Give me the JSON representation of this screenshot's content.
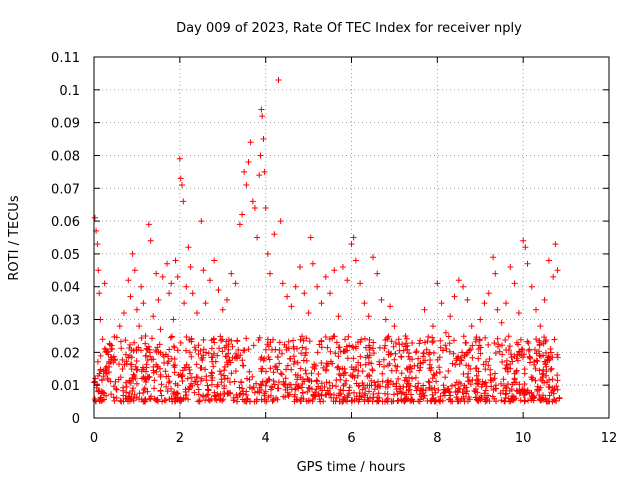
{
  "chart_data": {
    "type": "scatter",
    "title": "Day 009 of 2023, Rate Of TEC Index for receiver nply",
    "xlabel": "GPS time / hours",
    "ylabel": "ROTI / TECUs",
    "xlim": [
      0,
      12
    ],
    "ylim": [
      0,
      0.11
    ],
    "xticks": [
      "0",
      "2",
      "4",
      "6",
      "8",
      "10",
      "12"
    ],
    "yticks": [
      "0",
      "0.01",
      "0.02",
      "0.03",
      "0.04",
      "0.05",
      "0.06",
      "0.07",
      "0.08",
      "0.09",
      "0.1",
      "0.11"
    ],
    "grid": true,
    "marker": "+",
    "color": "#ff0000",
    "series": [
      {
        "name": "ROTI",
        "points": [
          [
            0.02,
            0.061
          ],
          [
            0.05,
            0.057
          ],
          [
            0.08,
            0.053
          ],
          [
            0.1,
            0.045
          ],
          [
            0.12,
            0.038
          ],
          [
            0.15,
            0.03
          ],
          [
            0.2,
            0.024
          ],
          [
            0.25,
            0.041
          ],
          [
            0.3,
            0.02
          ],
          [
            0.35,
            0.014
          ],
          [
            0.4,
            0.021
          ],
          [
            0.45,
            0.017
          ],
          [
            0.5,
            0.011
          ],
          [
            0.6,
            0.028
          ],
          [
            0.7,
            0.032
          ],
          [
            0.8,
            0.042
          ],
          [
            0.85,
            0.037
          ],
          [
            0.9,
            0.05
          ],
          [
            0.95,
            0.045
          ],
          [
            1.0,
            0.033
          ],
          [
            1.05,
            0.028
          ],
          [
            1.1,
            0.04
          ],
          [
            1.15,
            0.035
          ],
          [
            1.2,
            0.025
          ],
          [
            1.28,
            0.059
          ],
          [
            1.32,
            0.054
          ],
          [
            1.38,
            0.031
          ],
          [
            1.45,
            0.044
          ],
          [
            1.5,
            0.036
          ],
          [
            1.55,
            0.027
          ],
          [
            1.6,
            0.043
          ],
          [
            1.7,
            0.047
          ],
          [
            1.75,
            0.038
          ],
          [
            1.8,
            0.041
          ],
          [
            1.85,
            0.03
          ],
          [
            1.9,
            0.048
          ],
          [
            1.95,
            0.043
          ],
          [
            2.0,
            0.079
          ],
          [
            2.02,
            0.073
          ],
          [
            2.05,
            0.071
          ],
          [
            2.08,
            0.066
          ],
          [
            2.1,
            0.035
          ],
          [
            2.15,
            0.04
          ],
          [
            2.2,
            0.052
          ],
          [
            2.25,
            0.046
          ],
          [
            2.3,
            0.038
          ],
          [
            2.4,
            0.032
          ],
          [
            2.5,
            0.06
          ],
          [
            2.55,
            0.045
          ],
          [
            2.6,
            0.035
          ],
          [
            2.7,
            0.042
          ],
          [
            2.8,
            0.048
          ],
          [
            2.9,
            0.039
          ],
          [
            3.0,
            0.033
          ],
          [
            3.1,
            0.036
          ],
          [
            3.2,
            0.044
          ],
          [
            3.3,
            0.041
          ],
          [
            3.4,
            0.059
          ],
          [
            3.45,
            0.062
          ],
          [
            3.5,
            0.075
          ],
          [
            3.55,
            0.071
          ],
          [
            3.6,
            0.078
          ],
          [
            3.65,
            0.084
          ],
          [
            3.7,
            0.066
          ],
          [
            3.75,
            0.064
          ],
          [
            3.8,
            0.055
          ],
          [
            3.85,
            0.074
          ],
          [
            3.88,
            0.08
          ],
          [
            3.9,
            0.094
          ],
          [
            3.92,
            0.092
          ],
          [
            3.95,
            0.085
          ],
          [
            3.97,
            0.075
          ],
          [
            4.0,
            0.064
          ],
          [
            4.05,
            0.05
          ],
          [
            4.1,
            0.044
          ],
          [
            4.2,
            0.056
          ],
          [
            4.3,
            0.103
          ],
          [
            4.35,
            0.06
          ],
          [
            4.4,
            0.041
          ],
          [
            4.5,
            0.037
          ],
          [
            4.6,
            0.034
          ],
          [
            4.7,
            0.04
          ],
          [
            4.8,
            0.046
          ],
          [
            4.9,
            0.038
          ],
          [
            5.0,
            0.032
          ],
          [
            5.05,
            0.055
          ],
          [
            5.1,
            0.047
          ],
          [
            5.2,
            0.04
          ],
          [
            5.3,
            0.035
          ],
          [
            5.4,
            0.043
          ],
          [
            5.5,
            0.038
          ],
          [
            5.6,
            0.045
          ],
          [
            5.7,
            0.031
          ],
          [
            5.8,
            0.046
          ],
          [
            5.9,
            0.042
          ],
          [
            6.0,
            0.053
          ],
          [
            6.05,
            0.055
          ],
          [
            6.1,
            0.048
          ],
          [
            6.2,
            0.041
          ],
          [
            6.3,
            0.035
          ],
          [
            6.4,
            0.031
          ],
          [
            6.5,
            0.049
          ],
          [
            6.6,
            0.044
          ],
          [
            6.7,
            0.036
          ],
          [
            6.8,
            0.03
          ],
          [
            6.9,
            0.034
          ],
          [
            7.0,
            0.028
          ],
          [
            7.1,
            0.024
          ],
          [
            7.3,
            0.022
          ],
          [
            7.5,
            0.02
          ],
          [
            7.7,
            0.033
          ],
          [
            7.9,
            0.028
          ],
          [
            8.0,
            0.041
          ],
          [
            8.1,
            0.035
          ],
          [
            8.2,
            0.026
          ],
          [
            8.3,
            0.031
          ],
          [
            8.4,
            0.037
          ],
          [
            8.5,
            0.042
          ],
          [
            8.6,
            0.04
          ],
          [
            8.7,
            0.036
          ],
          [
            8.8,
            0.028
          ],
          [
            8.9,
            0.024
          ],
          [
            9.0,
            0.03
          ],
          [
            9.1,
            0.035
          ],
          [
            9.2,
            0.038
          ],
          [
            9.3,
            0.049
          ],
          [
            9.35,
            0.044
          ],
          [
            9.4,
            0.033
          ],
          [
            9.5,
            0.029
          ],
          [
            9.6,
            0.035
          ],
          [
            9.7,
            0.046
          ],
          [
            9.8,
            0.041
          ],
          [
            9.9,
            0.032
          ],
          [
            10.0,
            0.054
          ],
          [
            10.05,
            0.052
          ],
          [
            10.1,
            0.047
          ],
          [
            10.2,
            0.04
          ],
          [
            10.3,
            0.033
          ],
          [
            10.4,
            0.028
          ],
          [
            10.5,
            0.036
          ],
          [
            10.6,
            0.048
          ],
          [
            10.7,
            0.043
          ],
          [
            10.75,
            0.053
          ],
          [
            10.8,
            0.045
          ]
        ],
        "dense_band": {
          "x_range": [
            0.0,
            10.85
          ],
          "y_range": [
            0.005,
            0.025
          ],
          "note": "dense band of low ROTI values"
        }
      }
    ]
  }
}
